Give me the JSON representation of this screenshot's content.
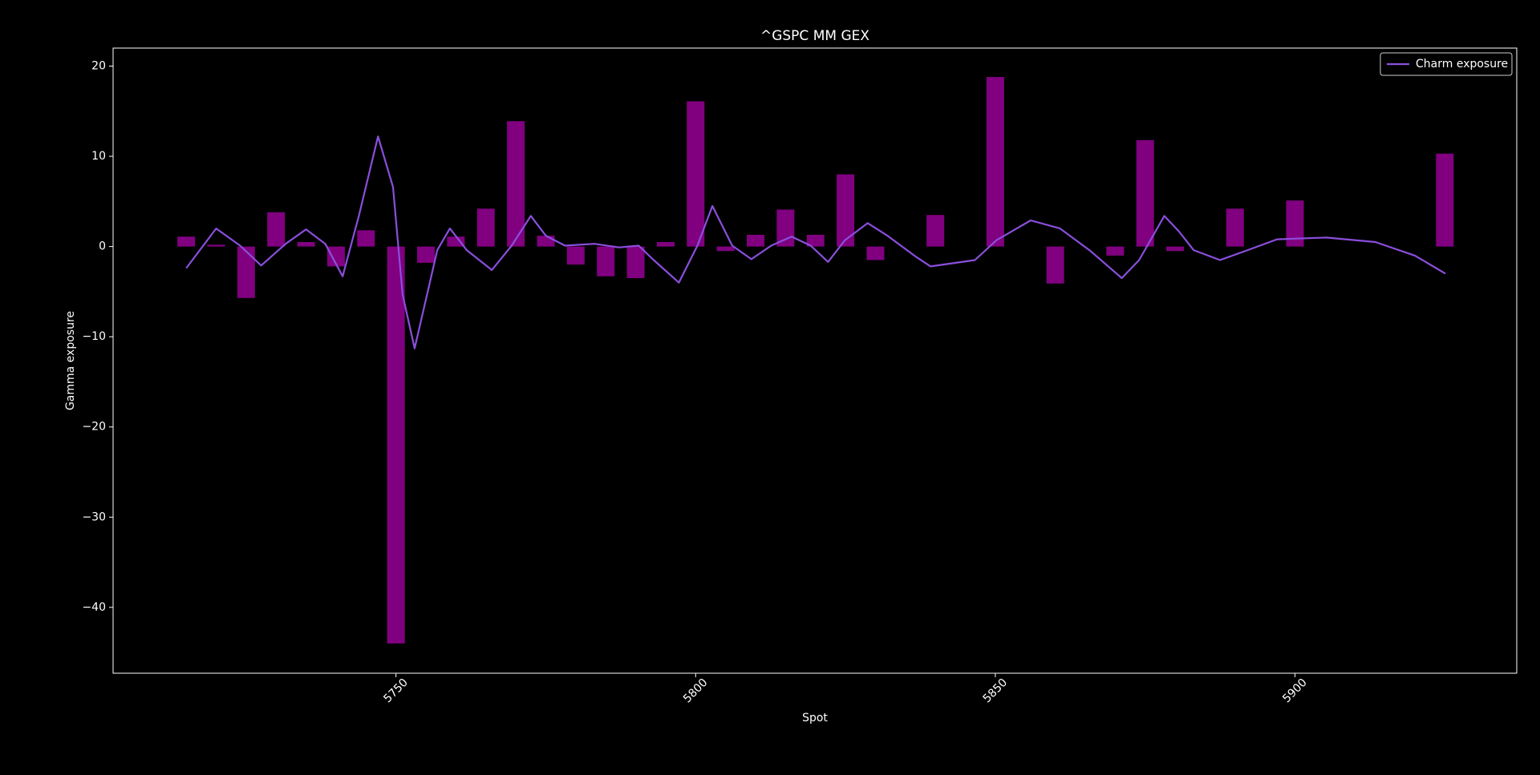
{
  "chart_data": {
    "type": "bar",
    "title": "^GSPC MM GEX",
    "x_label": "Spot",
    "y_label": "Gamma exposure",
    "x": [
      5715,
      5720,
      5725,
      5730,
      5735,
      5740,
      5745,
      5750,
      5755,
      5760,
      5765,
      5770,
      5775,
      5780,
      5785,
      5790,
      5795,
      5800,
      5805,
      5810,
      5815,
      5820,
      5825,
      5830,
      5840,
      5850,
      5860,
      5870,
      5875,
      5880,
      5890,
      5900,
      5925
    ],
    "values": [
      1.1,
      0.2,
      -5.7,
      3.8,
      0.5,
      -2.2,
      1.8,
      -44.0,
      -1.8,
      1.1,
      4.2,
      13.9,
      1.2,
      -2.0,
      -3.3,
      -3.5,
      0.5,
      16.1,
      -0.5,
      1.3,
      4.1,
      1.3,
      8.0,
      -1.5,
      3.5,
      18.8,
      -4.1,
      -1.0,
      11.8,
      -0.5,
      4.2,
      5.1,
      10.3
    ],
    "color": "#800080",
    "line": {
      "name": "Charm exposure",
      "color": "#8a4fdc",
      "x": [
        5715,
        5720,
        5724,
        5727.5,
        5731.6,
        5735,
        5738.2,
        5741.1,
        5743.8,
        5747,
        5749.5,
        5751.1,
        5753.1,
        5755.2,
        5756.9,
        5759,
        5761.8,
        5766,
        5769.3,
        5772.5,
        5775,
        5778.2,
        5783.1,
        5787.2,
        5790.5,
        5793,
        5797.2,
        5800.3,
        5802.8,
        5806.1,
        5809.3,
        5812.6,
        5816,
        5819.2,
        5822.1,
        5824.9,
        5828.7,
        5832,
        5836.9,
        5839.2,
        5846.6,
        5850.2,
        5855.9,
        5860.8,
        5865.7,
        5871.1,
        5874,
        5878.2,
        5880.6,
        5883.1,
        5887.5,
        5892.1,
        5897,
        5905.2,
        5913.4,
        5920,
        5925.1
      ],
      "values": [
        -2.4,
        2.0,
        0.1,
        -2.1,
        0.3,
        1.9,
        0.3,
        -3.3,
        3.4,
        12.2,
        6.6,
        -5.3,
        -11.3,
        -5.3,
        -0.4,
        2.0,
        -0.4,
        -2.6,
        0.1,
        3.4,
        1.2,
        0.1,
        0.3,
        -0.1,
        0.1,
        -1.5,
        -4.0,
        0.1,
        4.5,
        0.1,
        -1.4,
        0.1,
        1.1,
        0.1,
        -1.7,
        0.7,
        2.6,
        1.2,
        -1.2,
        -2.2,
        -1.5,
        0.7,
        2.9,
        2.0,
        -0.4,
        -3.5,
        -1.5,
        3.4,
        1.7,
        -0.4,
        -1.5,
        -0.4,
        0.8,
        1.0,
        0.5,
        -1.0,
        -3.0
      ]
    },
    "xlim": [
      5702.8,
      5937.0
    ],
    "xticks": [
      5750,
      5800,
      5850,
      5900
    ],
    "ylim": [
      -47.3,
      22.0
    ],
    "yticks": [
      {
        "value": -40,
        "label": "−40"
      },
      {
        "value": -30,
        "label": "−30"
      },
      {
        "value": -20,
        "label": "−20"
      },
      {
        "value": -10,
        "label": "−10"
      },
      0,
      10,
      20
    ],
    "legend": "upper right"
  }
}
